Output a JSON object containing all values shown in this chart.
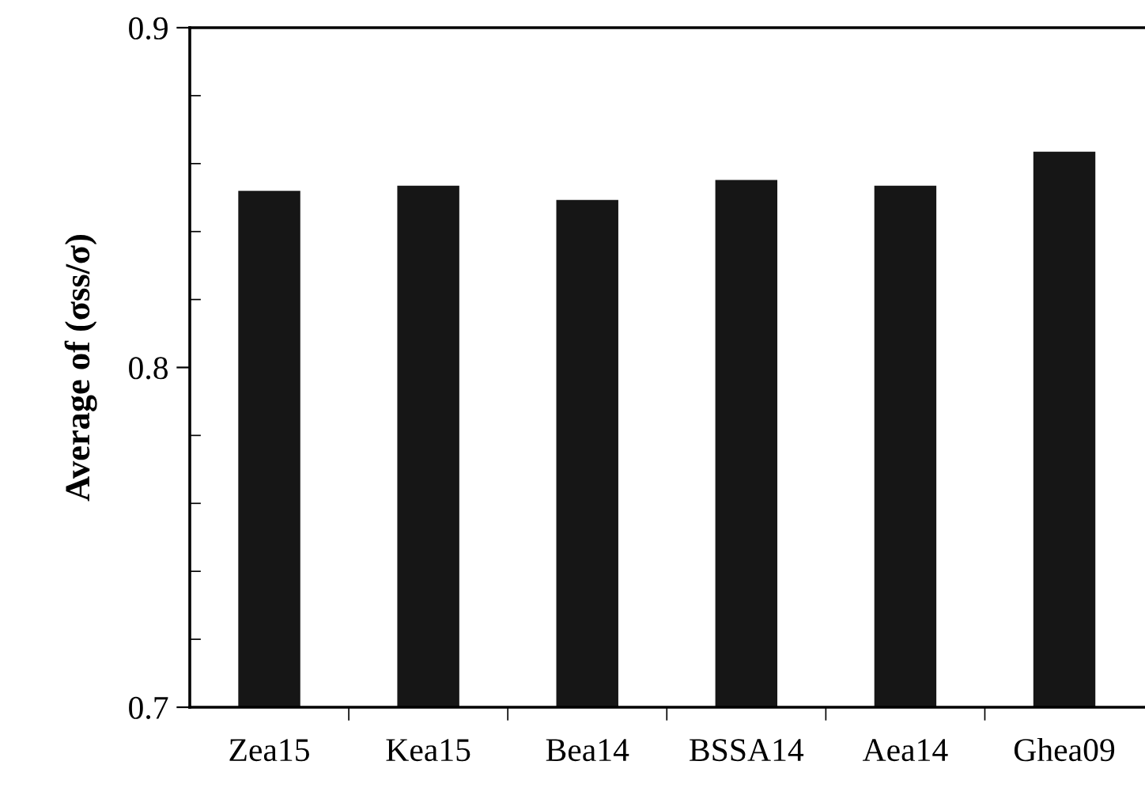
{
  "chart_data": {
    "type": "bar",
    "ylabel": "Average of (σss/σ)",
    "categories": [
      "Zea15",
      "Kea15",
      "Bea14",
      "BSSA14",
      "Aea14",
      "Ghea09"
    ],
    "values": [
      0.852,
      0.8535,
      0.8493,
      0.8552,
      0.8535,
      0.8635
    ],
    "color": "#161616",
    "ylim": [
      0.7,
      0.9
    ],
    "yticks": [
      0.7,
      {
        "value": 0.72,
        "label": null
      },
      {
        "value": 0.74,
        "label": null
      },
      {
        "value": 0.76,
        "label": null
      },
      {
        "value": 0.78,
        "label": null
      },
      0.8,
      {
        "value": 0.82,
        "label": null
      },
      {
        "value": 0.84,
        "label": null
      },
      {
        "value": 0.86,
        "label": null
      },
      {
        "value": 0.88,
        "label": null
      },
      0.9
    ],
    "grid": false,
    "legend": false
  }
}
